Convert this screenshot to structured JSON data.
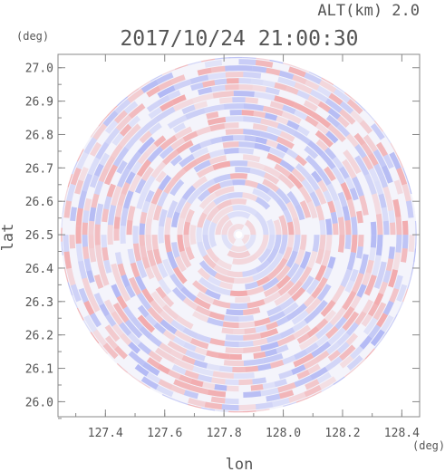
{
  "header": {
    "altitude_label": "ALT(km) 2.0",
    "timestamp": "2017/10/24 21:00:30"
  },
  "chart_data": {
    "type": "heatmap",
    "title": "2017/10/24 21:00:30",
    "subtitle": "ALT(km) 2.0",
    "xlabel": "lon",
    "ylabel": "lat",
    "x_unit": "(deg)",
    "y_unit": "(deg)",
    "xlim": [
      127.24,
      128.46
    ],
    "ylim": [
      25.955,
      27.04
    ],
    "x_ticks": [
      "127.4",
      "127.6",
      "127.8",
      "128.0",
      "128.2",
      "128.4"
    ],
    "y_ticks": [
      "26.0",
      "26.1",
      "26.2",
      "26.3",
      "26.4",
      "26.5",
      "26.6",
      "26.7",
      "26.8",
      "26.9",
      "27.0"
    ],
    "center": {
      "lon": 127.85,
      "lat": 26.5
    },
    "radius_deg": 0.6,
    "colors": {
      "positive": "#f08080",
      "negative": "#8c96f0",
      "neutral": "#ffffff",
      "axis": "#888888",
      "text": "#555555"
    }
  }
}
